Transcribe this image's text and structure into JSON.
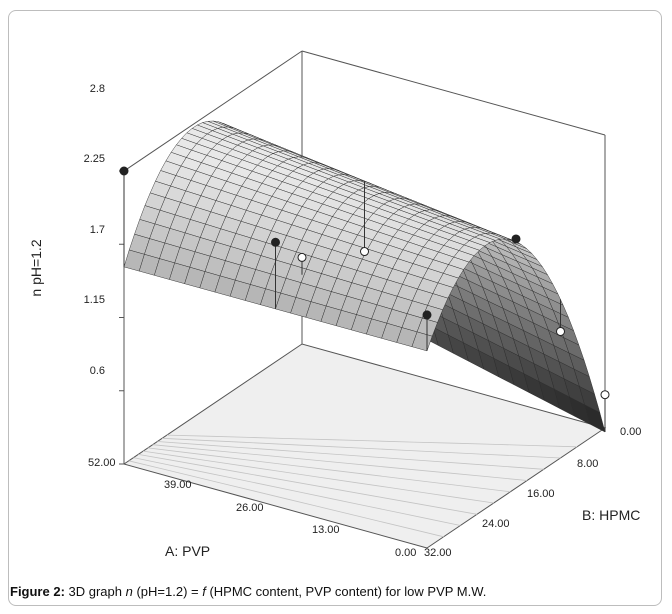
{
  "chart_data": {
    "type": "surface3d",
    "title": "",
    "zlabel": "n pH=1.2",
    "xlabel": "A: PVP",
    "ylabel": "B: HPMC",
    "x_ticks": [
      "52.00",
      "39.00",
      "26.00",
      "13.00",
      "0.00"
    ],
    "y_ticks": [
      "0.00",
      "8.00",
      "16.00",
      "24.00",
      "32.00"
    ],
    "z_ticks": [
      "2.8",
      "2.25",
      "1.7",
      "1.15",
      "0.6"
    ],
    "xlim": [
      0,
      52
    ],
    "ylim": [
      0,
      32
    ],
    "zlim": [
      0.6,
      2.8
    ],
    "surface": {
      "hpmc": [
        0,
        8,
        16,
        24,
        32
      ],
      "pvp": [
        0,
        13,
        26,
        39,
        52
      ],
      "z_by_hpmc_at_pvp0": [
        0.57,
        1.85,
        2.45,
        2.3,
        2.08
      ]
    },
    "design_points": [
      {
        "pvp": 52,
        "hpmc": 32,
        "z": 2.8,
        "marker": "filled"
      },
      {
        "pvp": 26,
        "hpmc": 32,
        "z": 2.58,
        "marker": "filled"
      },
      {
        "pvp": 0,
        "hpmc": 32,
        "z": 2.35,
        "marker": "filled"
      },
      {
        "pvp": 0,
        "hpmc": 16,
        "z": 2.47,
        "marker": "filled"
      },
      {
        "pvp": 52,
        "hpmc": 0,
        "z": 1.25,
        "marker": "open"
      },
      {
        "pvp": 26,
        "hpmc": 16,
        "z": 2.06,
        "marker": "open"
      },
      {
        "pvp": 0,
        "hpmc": 0,
        "z": 0.85,
        "marker": "open"
      },
      {
        "pvp": 0,
        "hpmc": 8,
        "z": 1.55,
        "marker": "open"
      }
    ],
    "grid": false,
    "floor_contours": true
  },
  "caption": {
    "label": "Figure 2:",
    "pre": " 3D graph ",
    "n": "n",
    "mid": " (pH=1.2) = ",
    "f": "f",
    "post": " (HPMC content, PVP content) for low PVP M.W."
  },
  "colors": {
    "surface_light": "#e6e6e6",
    "surface_dark": "#1c1c1c",
    "floor": "#efefef",
    "axis": "#555555"
  }
}
